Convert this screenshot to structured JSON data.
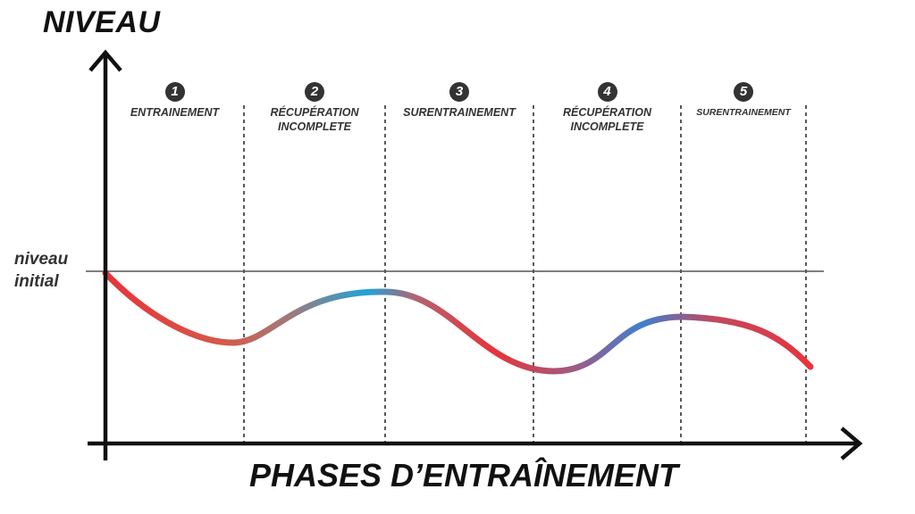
{
  "diagram": {
    "y_axis_title": "NIVEAU",
    "x_axis_title": "PHASES D’ENTRAÎNEMENT",
    "reference_line": {
      "label_line1": "niveau",
      "label_line2": "initial",
      "color": "#555555"
    },
    "phases": [
      {
        "number": "1",
        "label": "ENTRAINEMENT",
        "size": "normal"
      },
      {
        "number": "2",
        "label": "RÉCUPÉRATION\nINCOMPLETE",
        "size": "normal"
      },
      {
        "number": "3",
        "label": "SURENTRAINEMENT",
        "size": "normal"
      },
      {
        "number": "4",
        "label": "RÉCUPÉRATION\nINCOMPLETE",
        "size": "normal"
      },
      {
        "number": "5",
        "label": "SURENTRAINEMENT",
        "size": "small"
      }
    ],
    "curve_colors": {
      "low": "#e8333a",
      "high": "#1fa3d8"
    },
    "axis_color": "#111111",
    "divider_color": "#222222",
    "phase_text_color": "#333333"
  }
}
